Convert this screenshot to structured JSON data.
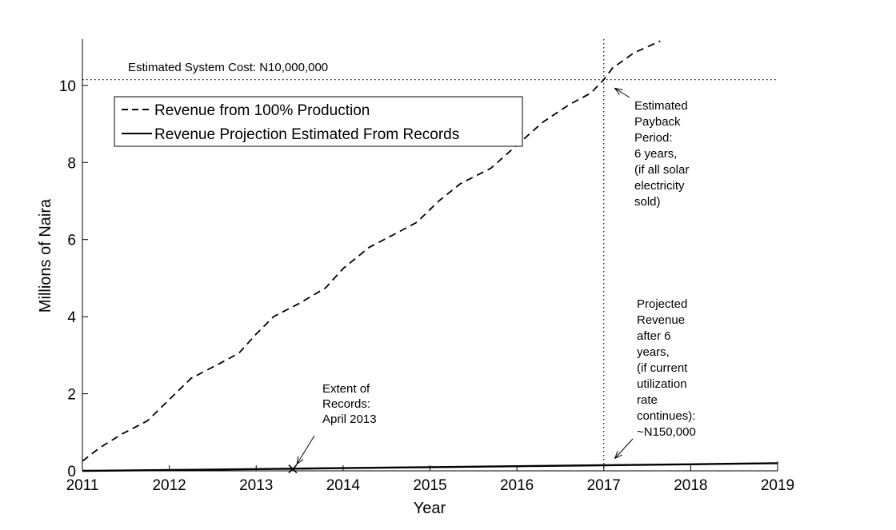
{
  "chart_data": {
    "type": "line",
    "title": "",
    "xlabel": "Year",
    "ylabel": "Millions of Naira",
    "xlim": [
      2011,
      2019
    ],
    "ylim": [
      0,
      11.2
    ],
    "xticks": [
      2011,
      2012,
      2013,
      2014,
      2015,
      2016,
      2017,
      2018,
      2019
    ],
    "yticks": [
      0,
      2,
      4,
      6,
      8,
      10
    ],
    "grid": false,
    "legend_position": "top-left",
    "series": [
      {
        "name": "Revenue from 100% Production",
        "style": "dashed",
        "color": "#000000",
        "x": [
          2011.0,
          2011.2,
          2011.45,
          2011.75,
          2012.0,
          2012.25,
          2012.55,
          2012.8,
          2013.0,
          2013.2,
          2013.5,
          2013.8,
          2014.0,
          2014.3,
          2014.6,
          2014.85,
          2015.1,
          2015.35,
          2015.7,
          2016.0,
          2016.3,
          2016.6,
          2016.85,
          2017.0,
          2017.1,
          2017.35,
          2017.65
        ],
        "y": [
          0.25,
          0.6,
          0.95,
          1.3,
          1.85,
          2.4,
          2.75,
          3.05,
          3.55,
          4.0,
          4.35,
          4.75,
          5.25,
          5.8,
          6.15,
          6.45,
          7.0,
          7.45,
          7.85,
          8.45,
          9.05,
          9.5,
          9.8,
          10.15,
          10.45,
          10.85,
          11.15
        ]
      },
      {
        "name": "Revenue Projection Estimated From Records",
        "style": "solid",
        "color": "#000000",
        "x": [
          2011,
          2012,
          2013,
          2014,
          2015,
          2016,
          2017,
          2018,
          2019
        ],
        "y": [
          0.0,
          0.02,
          0.045,
          0.07,
          0.095,
          0.12,
          0.145,
          0.17,
          0.2
        ]
      }
    ],
    "reference_lines": {
      "horizontal": {
        "y": 10.15,
        "style": "dotted",
        "label": "Estimated System Cost: N10,000,000"
      },
      "vertical": {
        "x": 2017,
        "style": "dotted"
      }
    },
    "marker": {
      "symbol": "×",
      "x": 2013.42,
      "y": 0.05
    },
    "annotations": [
      {
        "id": "records",
        "lines": [
          "Extent of",
          "Records:",
          "April 2013"
        ],
        "target": {
          "x": 2013.45,
          "y": 0.05
        }
      },
      {
        "id": "payback",
        "lines": [
          "Estimated",
          "Payback",
          "Period:",
          "6 years,",
          "(if all solar",
          "electricity",
          "sold)"
        ],
        "target": {
          "x": 2017.1,
          "y": 10.05
        }
      },
      {
        "id": "projected",
        "lines": [
          "Projected",
          "Revenue",
          "after 6",
          "years,",
          "(if current",
          "utilization",
          "rate",
          "continues):",
          "~N150,000"
        ],
        "target": {
          "x": 2017.1,
          "y": 0.2
        }
      }
    ]
  }
}
